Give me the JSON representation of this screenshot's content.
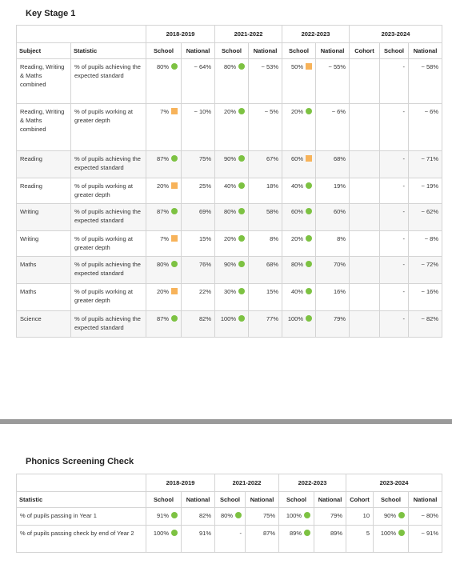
{
  "ks1": {
    "title": "Key Stage 1",
    "year_headers": [
      "2018-2019",
      "2021-2022",
      "2022-2023",
      "2023-2024"
    ],
    "column_headers": [
      "Subject",
      "Statistic",
      "School",
      "National",
      "School",
      "National",
      "School",
      "National",
      "Cohort",
      "School",
      "National"
    ],
    "rows": [
      [
        "Reading, Writing & Maths combined",
        "% of pupils achieving the expected standard",
        {
          "text": "80%",
          "status": "green"
        },
        "~ 64%",
        {
          "text": "80%",
          "status": "green"
        },
        "~ 53%",
        {
          "text": "50%",
          "status": "amber"
        },
        "~ 55%",
        null,
        "-",
        "~ 58%"
      ],
      [
        "Reading, Writing & Maths combined",
        "% of pupils working at greater depth",
        {
          "text": "7%",
          "status": "amber"
        },
        "~ 10%",
        {
          "text": "20%",
          "status": "green"
        },
        "~ 5%",
        {
          "text": "20%",
          "status": "green"
        },
        "~ 6%",
        null,
        "-",
        "~ 6%"
      ],
      [
        "Reading",
        "% of pupils achieving the expected standard",
        {
          "text": "87%",
          "status": "green"
        },
        "75%",
        {
          "text": "90%",
          "status": "green"
        },
        "67%",
        {
          "text": "60%",
          "status": "amber"
        },
        "68%",
        null,
        "-",
        "~ 71%"
      ],
      [
        "Reading",
        "% of pupils working at greater depth",
        {
          "text": "20%",
          "status": "amber"
        },
        "25%",
        {
          "text": "40%",
          "status": "green"
        },
        "18%",
        {
          "text": "40%",
          "status": "green"
        },
        "19%",
        null,
        "-",
        "~ 19%"
      ],
      [
        "Writing",
        "% of pupils achieving the expected standard",
        {
          "text": "87%",
          "status": "green"
        },
        "69%",
        {
          "text": "80%",
          "status": "green"
        },
        "58%",
        {
          "text": "60%",
          "status": "green"
        },
        "60%",
        null,
        "-",
        "~ 62%"
      ],
      [
        "Writing",
        "% of pupils working at greater depth",
        {
          "text": "7%",
          "status": "amber"
        },
        "15%",
        {
          "text": "20%",
          "status": "green"
        },
        "8%",
        {
          "text": "20%",
          "status": "green"
        },
        "8%",
        null,
        "-",
        "~ 8%"
      ],
      [
        "Maths",
        "% of pupils achieving the expected standard",
        {
          "text": "80%",
          "status": "green"
        },
        "76%",
        {
          "text": "90%",
          "status": "green"
        },
        "68%",
        {
          "text": "80%",
          "status": "green"
        },
        "70%",
        null,
        "-",
        "~ 72%"
      ],
      [
        "Maths",
        "% of pupils working at greater depth",
        {
          "text": "20%",
          "status": "amber"
        },
        "22%",
        {
          "text": "30%",
          "status": "green"
        },
        "15%",
        {
          "text": "40%",
          "status": "green"
        },
        "16%",
        null,
        "-",
        "~ 16%"
      ],
      [
        "Science",
        "% of pupils achieving the expected standard",
        {
          "text": "87%",
          "status": "green"
        },
        "82%",
        {
          "text": "100%",
          "status": "green"
        },
        "77%",
        {
          "text": "100%",
          "status": "green"
        },
        "79%",
        null,
        "-",
        "~ 82%"
      ]
    ]
  },
  "phonics": {
    "title": "Phonics Screening Check",
    "year_headers": [
      "2018-2019",
      "2021-2022",
      "2022-2023",
      "2023-2024"
    ],
    "column_headers": [
      "Statistic",
      "School",
      "National",
      "School",
      "National",
      "School",
      "National",
      "Cohort",
      "School",
      "National"
    ],
    "rows": [
      [
        "% of pupils passing in Year 1",
        {
          "text": "91%",
          "status": "green"
        },
        "82%",
        {
          "text": "80%",
          "status": "green"
        },
        "75%",
        {
          "text": "100%",
          "status": "green"
        },
        "79%",
        "10",
        {
          "text": "90%",
          "status": "green"
        },
        "~ 80%"
      ],
      [
        "% of pupils passing check by end of Year 2",
        {
          "text": "100%",
          "status": "green"
        },
        "91%",
        "-",
        "87%",
        {
          "text": "89%",
          "status": "green"
        },
        "89%",
        "5",
        {
          "text": "100%",
          "status": "green"
        },
        "~ 91%"
      ]
    ]
  }
}
